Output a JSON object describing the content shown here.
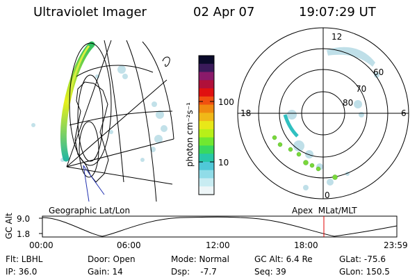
{
  "header": {
    "instrument": "Ultraviolet Imager",
    "date": "02 Apr 07",
    "time": "19:07:29 UT"
  },
  "colorbar": {
    "unit_label": "photon cm⁻²s⁻¹",
    "ticks": [
      "100",
      "10"
    ],
    "colors": [
      "#0a0a2a",
      "#3a1a5a",
      "#8a1a6a",
      "#b0103a",
      "#e01010",
      "#f05010",
      "#f08a10",
      "#f0b818",
      "#e8e818",
      "#b8f018",
      "#70e830",
      "#38d860",
      "#28c8a8",
      "#50c8d8",
      "#90dce8",
      "#c8ecf2",
      "#eef6f8"
    ]
  },
  "left_panel": {
    "label": "Geographic Lat/Lon"
  },
  "right_panel": {
    "label": "Apex  MLat/MLT",
    "mlt_labels": [
      "12",
      "18",
      "6",
      "0"
    ],
    "lat_labels": [
      "60",
      "70",
      "80"
    ]
  },
  "altitude_plot": {
    "ylabel": "GC Alt",
    "yticks": [
      "9.0",
      "1.8"
    ],
    "xticks": [
      "00:00",
      "06:00",
      "12:00",
      "18:00",
      "23:59"
    ],
    "marker_color": "#e00000"
  },
  "status": {
    "flt": "Flt: LBHL",
    "ip": "IP: 36.0",
    "door": "Door: Open",
    "gain": "Gain: 14",
    "mode": "Mode: Normal",
    "dsp": "Dsp:    -7.7",
    "gc_alt": "GC Alt: 6.4 Re",
    "seq": "Seq: 39",
    "glat": "GLat: -75.6",
    "glon": "GLon: 150.5"
  }
}
